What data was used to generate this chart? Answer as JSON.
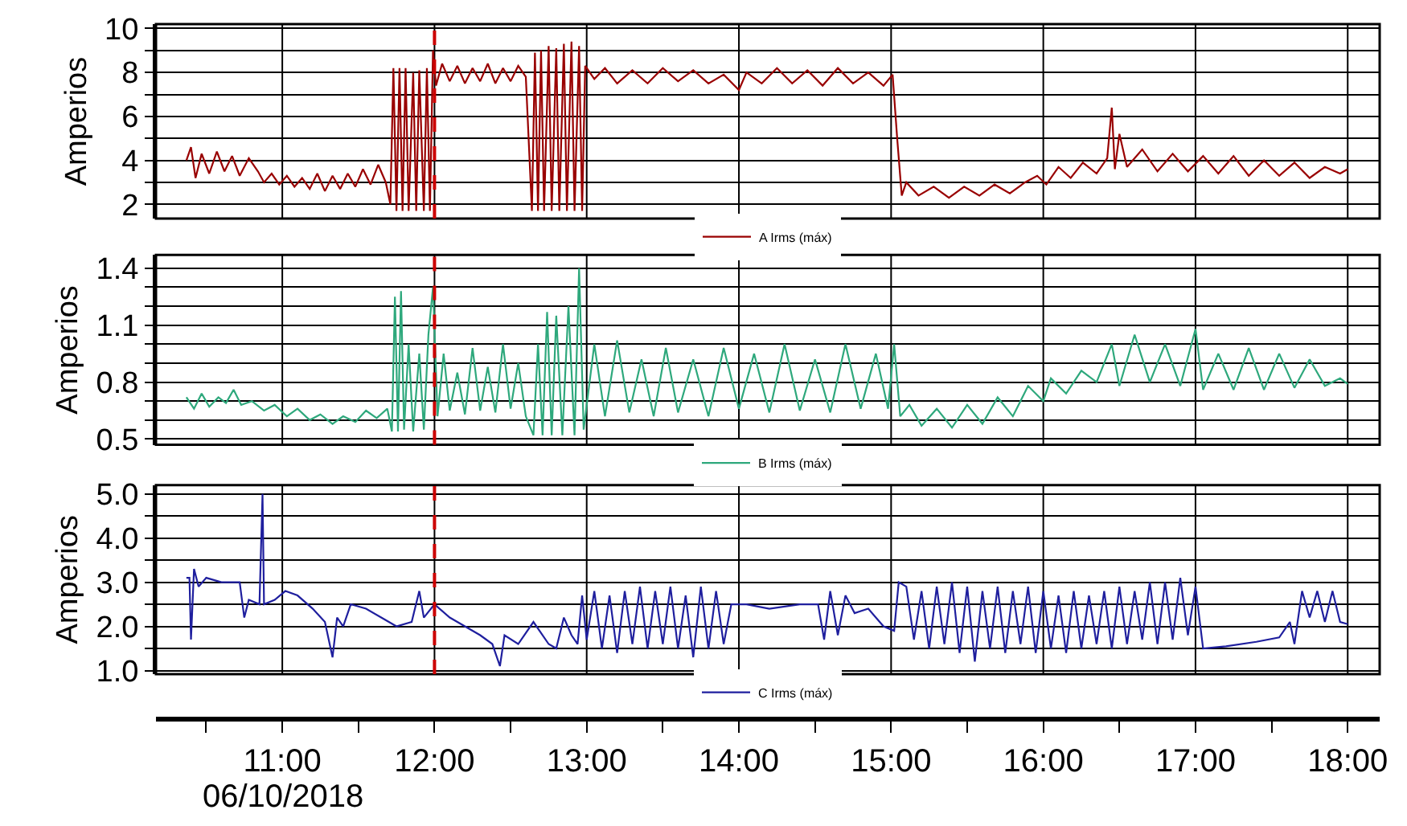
{
  "chart_data": [
    {
      "type": "line",
      "ylabel": "Amperios",
      "xlim": [
        10.17,
        18.21
      ],
      "xticks": [
        11,
        12,
        13,
        14,
        15,
        16,
        17,
        18
      ],
      "ylim": [
        1.35,
        10.2
      ],
      "yticks": [
        2,
        {
          "value": 3,
          "label": null
        },
        4,
        {
          "value": 5,
          "label": null
        },
        6,
        {
          "value": 7,
          "label": null
        },
        8,
        {
          "value": 9,
          "label": null
        },
        10
      ],
      "tick_labels": "y",
      "grid": true,
      "legend": "bottom",
      "marker": "none",
      "line_style": "solid",
      "ref_lines": [
        {
          "axis": "x",
          "value": 12,
          "label": null,
          "color": "#cc0000",
          "line_style": "dashed"
        }
      ],
      "series": [
        {
          "name": "A Irms (máx)",
          "color": "#990000",
          "x": [
            10.37,
            10.4,
            10.43,
            10.47,
            10.52,
            10.57,
            10.62,
            10.67,
            10.72,
            10.78,
            10.84,
            10.88,
            10.93,
            10.98,
            11.03,
            11.08,
            11.13,
            11.18,
            11.23,
            11.28,
            11.33,
            11.38,
            11.43,
            11.48,
            11.53,
            11.58,
            11.63,
            11.68,
            11.71,
            11.73,
            11.75,
            11.77,
            11.79,
            11.81,
            11.83,
            11.86,
            11.88,
            11.9,
            11.93,
            11.95,
            11.97,
            11.99,
            12.01,
            12.05,
            12.1,
            12.15,
            12.2,
            12.25,
            12.3,
            12.35,
            12.4,
            12.45,
            12.5,
            12.55,
            12.6,
            12.64,
            12.66,
            12.68,
            12.7,
            12.72,
            12.75,
            12.77,
            12.8,
            12.82,
            12.85,
            12.87,
            12.9,
            12.92,
            12.95,
            12.97,
            12.99,
            13.05,
            13.12,
            13.2,
            13.3,
            13.4,
            13.5,
            13.6,
            13.7,
            13.8,
            13.9,
            14.0,
            14.05,
            14.15,
            14.25,
            14.35,
            14.45,
            14.55,
            14.65,
            14.75,
            14.85,
            14.95,
            15.01,
            15.04,
            15.07,
            15.1,
            15.18,
            15.28,
            15.38,
            15.48,
            15.58,
            15.68,
            15.78,
            15.88,
            15.96,
            16.02,
            16.1,
            16.18,
            16.26,
            16.35,
            16.42,
            16.45,
            16.47,
            16.5,
            16.55,
            16.65,
            16.75,
            16.85,
            16.95,
            17.05,
            17.15,
            17.25,
            17.35,
            17.45,
            17.55,
            17.65,
            17.75,
            17.85,
            17.95,
            18.0
          ],
          "values": [
            4.0,
            4.6,
            3.2,
            4.3,
            3.4,
            4.4,
            3.5,
            4.2,
            3.3,
            4.1,
            3.5,
            3.0,
            3.4,
            2.9,
            3.3,
            2.8,
            3.2,
            2.7,
            3.4,
            2.6,
            3.3,
            2.7,
            3.4,
            2.8,
            3.6,
            2.9,
            3.8,
            3.0,
            2.0,
            8.2,
            1.7,
            8.2,
            1.7,
            8.2,
            1.7,
            8.0,
            1.7,
            8.1,
            1.7,
            8.2,
            1.7,
            9.0,
            7.4,
            8.4,
            7.6,
            8.3,
            7.5,
            8.2,
            7.6,
            8.4,
            7.5,
            8.2,
            7.6,
            8.3,
            7.8,
            1.7,
            8.9,
            1.7,
            9.0,
            1.7,
            9.2,
            1.7,
            9.1,
            1.7,
            9.3,
            1.7,
            9.4,
            1.7,
            9.2,
            1.7,
            8.3,
            7.7,
            8.2,
            7.5,
            8.1,
            7.5,
            8.2,
            7.6,
            8.1,
            7.5,
            7.9,
            7.2,
            8.0,
            7.5,
            8.2,
            7.5,
            8.1,
            7.4,
            8.2,
            7.5,
            8.0,
            7.4,
            7.9,
            5.0,
            2.4,
            3.0,
            2.4,
            2.8,
            2.3,
            2.8,
            2.4,
            2.9,
            2.5,
            3.0,
            3.3,
            2.9,
            3.7,
            3.2,
            3.9,
            3.4,
            4.1,
            6.4,
            3.6,
            5.2,
            3.7,
            4.5,
            3.5,
            4.3,
            3.5,
            4.2,
            3.4,
            4.2,
            3.3,
            4.0,
            3.3,
            3.9,
            3.2,
            3.7,
            3.4,
            3.6
          ]
        }
      ]
    },
    {
      "type": "line",
      "ylabel": "Amperios",
      "xlim": [
        10.17,
        18.21
      ],
      "xticks": [
        11,
        12,
        13,
        14,
        15,
        16,
        17,
        18
      ],
      "ylim": [
        0.47,
        1.47
      ],
      "yticks": [
        0.5,
        {
          "value": 0.6,
          "label": null
        },
        {
          "value": 0.7,
          "label": null
        },
        0.8,
        {
          "value": 0.9,
          "label": null
        },
        {
          "value": 1.0,
          "label": null
        },
        1.1,
        {
          "value": 1.2,
          "label": null
        },
        {
          "value": 1.3,
          "label": null
        },
        1.4
      ],
      "tick_labels": "y",
      "grid": true,
      "legend": "bottom",
      "marker": "none",
      "line_style": "solid",
      "ref_lines": [
        {
          "axis": "x",
          "value": 12,
          "label": null,
          "color": "#cc0000",
          "line_style": "dashed"
        }
      ],
      "series": [
        {
          "name": "B Irms (máx)",
          "color": "#2ea87c",
          "x": [
            10.37,
            10.42,
            10.47,
            10.52,
            10.58,
            10.63,
            10.68,
            10.73,
            10.8,
            10.88,
            10.95,
            11.03,
            11.1,
            11.18,
            11.25,
            11.33,
            11.4,
            11.48,
            11.55,
            11.62,
            11.69,
            11.72,
            11.74,
            11.76,
            11.78,
            11.8,
            11.83,
            11.86,
            11.9,
            11.93,
            11.96,
            11.99,
            12.02,
            12.06,
            12.1,
            12.15,
            12.2,
            12.25,
            12.3,
            12.35,
            12.4,
            12.45,
            12.5,
            12.55,
            12.6,
            12.65,
            12.68,
            12.71,
            12.74,
            12.77,
            12.8,
            12.84,
            12.88,
            12.92,
            12.95,
            12.98,
            13.05,
            13.12,
            13.2,
            13.28,
            13.36,
            13.44,
            13.52,
            13.6,
            13.7,
            13.8,
            13.9,
            14.0,
            14.1,
            14.2,
            14.3,
            14.4,
            14.5,
            14.6,
            14.7,
            14.8,
            14.9,
            14.98,
            15.02,
            15.06,
            15.12,
            15.2,
            15.3,
            15.4,
            15.5,
            15.6,
            15.7,
            15.8,
            15.9,
            16.0,
            16.05,
            16.15,
            16.25,
            16.35,
            16.45,
            16.5,
            16.6,
            16.7,
            16.8,
            16.9,
            17.0,
            17.05,
            17.15,
            17.25,
            17.35,
            17.45,
            17.55,
            17.65,
            17.75,
            17.85,
            17.95,
            18.0
          ],
          "values": [
            0.72,
            0.66,
            0.74,
            0.67,
            0.72,
            0.69,
            0.76,
            0.68,
            0.7,
            0.65,
            0.68,
            0.62,
            0.66,
            0.6,
            0.63,
            0.58,
            0.62,
            0.59,
            0.65,
            0.61,
            0.66,
            0.54,
            1.25,
            0.54,
            1.28,
            0.55,
            1.0,
            0.54,
            0.95,
            0.55,
            1.05,
            1.3,
            0.62,
            0.95,
            0.65,
            0.85,
            0.63,
            0.98,
            0.65,
            0.88,
            0.64,
            1.0,
            0.66,
            0.9,
            0.62,
            0.52,
            1.0,
            0.52,
            1.17,
            0.52,
            1.15,
            0.52,
            1.2,
            0.52,
            1.4,
            0.55,
            1.0,
            0.62,
            1.02,
            0.64,
            0.92,
            0.62,
            0.98,
            0.64,
            0.92,
            0.62,
            0.98,
            0.66,
            0.95,
            0.64,
            1.0,
            0.65,
            0.92,
            0.64,
            1.0,
            0.66,
            0.95,
            0.66,
            1.0,
            0.62,
            0.68,
            0.57,
            0.66,
            0.56,
            0.68,
            0.58,
            0.72,
            0.62,
            0.78,
            0.7,
            0.82,
            0.74,
            0.86,
            0.8,
            1.0,
            0.78,
            1.05,
            0.8,
            1.0,
            0.78,
            1.08,
            0.76,
            0.95,
            0.76,
            0.98,
            0.76,
            0.95,
            0.77,
            0.92,
            0.78,
            0.82,
            0.79
          ]
        }
      ]
    },
    {
      "type": "line",
      "ylabel": "Amperios",
      "xlim": [
        10.17,
        18.21
      ],
      "xticks": [
        {
          "value": 10.5,
          "label": null
        },
        {
          "value": 11,
          "label": "11:00"
        },
        {
          "value": 11.5,
          "label": null
        },
        {
          "value": 12,
          "label": "12:00"
        },
        {
          "value": 12.5,
          "label": null
        },
        {
          "value": 13,
          "label": "13:00"
        },
        {
          "value": 13.5,
          "label": null
        },
        {
          "value": 14,
          "label": "14:00"
        },
        {
          "value": 14.5,
          "label": null
        },
        {
          "value": 15,
          "label": "15:00"
        },
        {
          "value": 15.5,
          "label": null
        },
        {
          "value": 16,
          "label": "16:00"
        },
        {
          "value": 16.5,
          "label": null
        },
        {
          "value": 17,
          "label": "17:00"
        },
        {
          "value": 17.5,
          "label": null
        },
        {
          "value": 18,
          "label": "18:00"
        }
      ],
      "ylim": [
        0.92,
        5.2
      ],
      "yticks": [
        {
          "value": 1,
          "label": "1.0"
        },
        {
          "value": 1.5,
          "label": null
        },
        {
          "value": 2,
          "label": "2.0"
        },
        {
          "value": 2.5,
          "label": null
        },
        {
          "value": 3,
          "label": "3.0"
        },
        {
          "value": 3.5,
          "label": null
        },
        {
          "value": 4,
          "label": "4.0"
        },
        {
          "value": 4.5,
          "label": null
        },
        {
          "value": 5,
          "label": "5.0"
        }
      ],
      "grid": true,
      "legend": "bottom",
      "marker": "none",
      "line_style": "solid",
      "annotations": [
        "06/10/2018"
      ],
      "ref_lines": [
        {
          "axis": "x",
          "value": 12,
          "label": null,
          "color": "#cc0000",
          "line_style": "dashed"
        }
      ],
      "series": [
        {
          "name": "C Irms (máx)",
          "color": "#1f1f9e",
          "x": [
            10.37,
            10.39,
            10.4,
            10.42,
            10.45,
            10.5,
            10.6,
            10.72,
            10.75,
            10.78,
            10.85,
            10.87,
            10.88,
            10.95,
            11.02,
            11.1,
            11.2,
            11.28,
            11.33,
            11.36,
            11.4,
            11.45,
            11.55,
            11.65,
            11.75,
            11.85,
            11.9,
            11.93,
            12.0,
            12.1,
            12.2,
            12.3,
            12.38,
            12.43,
            12.46,
            12.55,
            12.65,
            12.75,
            12.8,
            12.85,
            12.9,
            12.94,
            12.97,
            13.0,
            13.05,
            13.1,
            13.15,
            13.2,
            13.25,
            13.3,
            13.35,
            13.4,
            13.45,
            13.5,
            13.55,
            13.6,
            13.65,
            13.7,
            13.75,
            13.8,
            13.85,
            13.9,
            13.95,
            14.05,
            14.2,
            14.4,
            14.52,
            14.56,
            14.6,
            14.65,
            14.7,
            14.76,
            14.85,
            14.95,
            15.02,
            15.05,
            15.1,
            15.15,
            15.2,
            15.25,
            15.3,
            15.35,
            15.4,
            15.45,
            15.5,
            15.55,
            15.6,
            15.65,
            15.7,
            15.75,
            15.8,
            15.85,
            15.9,
            15.95,
            16.0,
            16.05,
            16.1,
            16.15,
            16.2,
            16.25,
            16.3,
            16.35,
            16.4,
            16.45,
            16.5,
            16.55,
            16.6,
            16.65,
            16.7,
            16.75,
            16.8,
            16.85,
            16.9,
            16.95,
            17.0,
            17.05,
            17.2,
            17.4,
            17.55,
            17.62,
            17.65,
            17.7,
            17.75,
            17.8,
            17.85,
            17.9,
            17.95,
            18.0
          ],
          "values": [
            3.1,
            3.1,
            1.7,
            3.3,
            2.9,
            3.1,
            3.0,
            3.0,
            2.2,
            2.6,
            2.5,
            5.0,
            2.5,
            2.6,
            2.8,
            2.7,
            2.4,
            2.1,
            1.3,
            2.2,
            2.0,
            2.5,
            2.4,
            2.2,
            2.0,
            2.1,
            2.8,
            2.2,
            2.5,
            2.2,
            2.0,
            1.8,
            1.6,
            1.1,
            1.8,
            1.6,
            2.1,
            1.6,
            1.5,
            2.2,
            1.8,
            1.6,
            2.7,
            1.7,
            2.8,
            1.5,
            2.7,
            1.4,
            2.8,
            1.6,
            2.9,
            1.5,
            2.8,
            1.6,
            2.9,
            1.5,
            2.7,
            1.3,
            2.9,
            1.5,
            2.8,
            1.6,
            2.5,
            2.5,
            2.4,
            2.5,
            2.5,
            1.7,
            2.8,
            1.8,
            2.7,
            2.3,
            2.4,
            2.0,
            1.9,
            3.0,
            2.9,
            1.7,
            2.8,
            1.5,
            2.9,
            1.6,
            3.0,
            1.4,
            2.9,
            1.2,
            2.8,
            1.5,
            2.9,
            1.4,
            2.8,
            1.6,
            2.9,
            1.4,
            2.8,
            1.5,
            2.7,
            1.4,
            2.8,
            1.5,
            2.7,
            1.6,
            2.8,
            1.5,
            2.9,
            1.6,
            2.8,
            1.7,
            3.0,
            1.6,
            3.0,
            1.7,
            3.1,
            1.8,
            2.9,
            1.5,
            1.55,
            1.65,
            1.75,
            2.1,
            1.6,
            2.8,
            2.2,
            2.8,
            2.1,
            2.8,
            2.1,
            2.05
          ]
        }
      ]
    }
  ]
}
